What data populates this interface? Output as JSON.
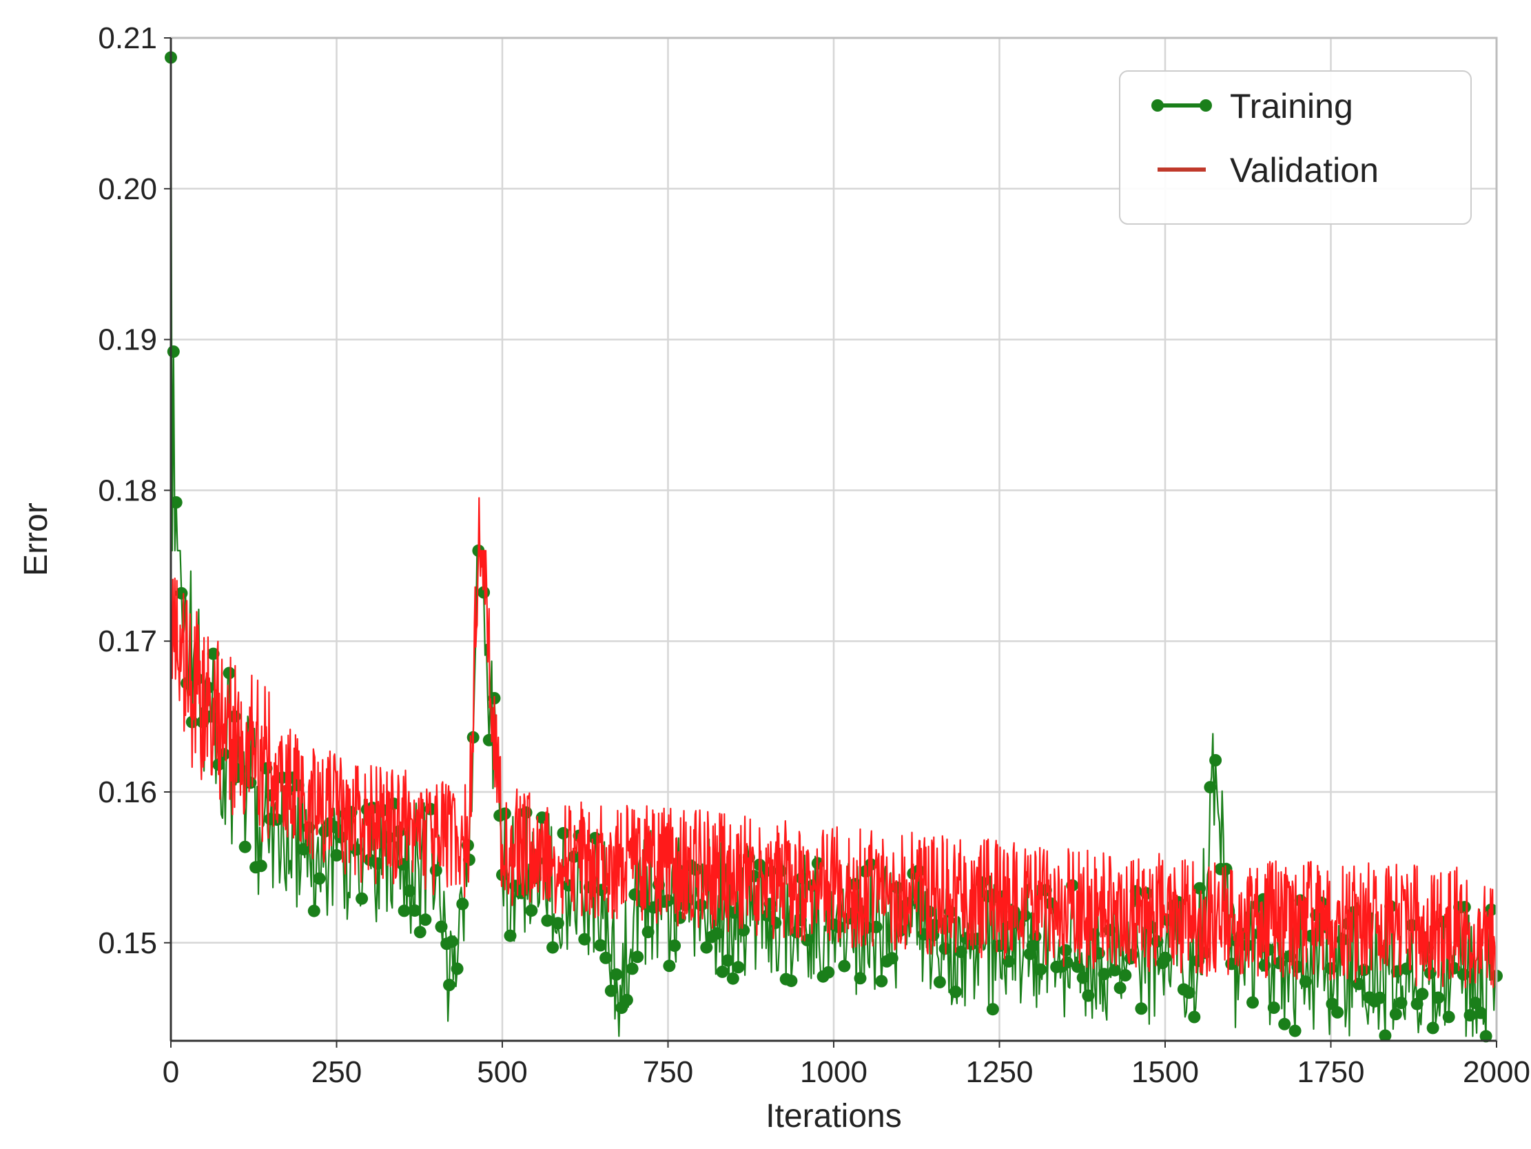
{
  "chart_data": {
    "type": "line",
    "title": "",
    "xlabel": "Iterations",
    "ylabel": "Error",
    "xlim": [
      0,
      2000
    ],
    "ylim": [
      0.1435,
      0.21
    ],
    "xticks": [
      0,
      250,
      500,
      750,
      1000,
      1250,
      1500,
      1750,
      2000
    ],
    "xtick_labels": [
      "0",
      "250",
      "500",
      "750",
      "1000",
      "1250",
      "1500",
      "1750",
      "2000"
    ],
    "yticks": [
      0.15,
      0.16,
      0.17,
      0.18,
      0.19,
      0.2,
      0.21
    ],
    "ytick_labels": [
      "0.15",
      "0.16",
      "0.17",
      "0.18",
      "0.19",
      "0.20",
      "0.21"
    ],
    "grid": true,
    "legend_position": "top-right",
    "series": [
      {
        "name": "Training",
        "color": "#1a7f1a",
        "marker": "circle",
        "x": [
          0,
          4,
          8,
          15,
          25,
          40,
          60,
          80,
          100,
          125,
          150,
          175,
          200,
          250,
          300,
          350,
          400,
          420,
          450,
          465,
          500,
          550,
          600,
          650,
          675,
          700,
          750,
          800,
          850,
          900,
          950,
          1000,
          1050,
          1100,
          1150,
          1200,
          1250,
          1300,
          1350,
          1400,
          1450,
          1500,
          1550,
          1575,
          1600,
          1650,
          1700,
          1750,
          1800,
          1850,
          1900,
          1950,
          2000
        ],
        "y": [
          0.2087,
          0.1892,
          0.1792,
          0.1745,
          0.1705,
          0.1675,
          0.165,
          0.1625,
          0.161,
          0.1595,
          0.1582,
          0.157,
          0.1562,
          0.1558,
          0.1555,
          0.1552,
          0.1548,
          0.1472,
          0.1555,
          0.178,
          0.1545,
          0.1543,
          0.1538,
          0.1535,
          0.1455,
          0.1532,
          0.1528,
          0.1525,
          0.152,
          0.1518,
          0.1515,
          0.1512,
          0.151,
          0.1508,
          0.1505,
          0.1503,
          0.1498,
          0.1498,
          0.1495,
          0.1493,
          0.1492,
          0.149,
          0.1488,
          0.1612,
          0.1486,
          0.1485,
          0.1484,
          0.1483,
          0.1482,
          0.1481,
          0.148,
          0.1479,
          0.1478
        ]
      },
      {
        "name": "Validation",
        "color": "#ff1a1a",
        "x": [
          0,
          4,
          8,
          15,
          25,
          40,
          60,
          80,
          100,
          125,
          150,
          175,
          200,
          250,
          300,
          350,
          400,
          450,
          465,
          500,
          550,
          600,
          650,
          700,
          750,
          800,
          850,
          900,
          950,
          1000,
          1050,
          1100,
          1150,
          1200,
          1250,
          1300,
          1350,
          1400,
          1450,
          1500,
          1550,
          1600,
          1650,
          1700,
          1750,
          1800,
          1850,
          1900,
          1950,
          2000
        ],
        "y": [
          0.172,
          0.1705,
          0.169,
          0.168,
          0.1672,
          0.1665,
          0.1655,
          0.1645,
          0.1635,
          0.1625,
          0.1615,
          0.1605,
          0.1598,
          0.1585,
          0.1578,
          0.1575,
          0.157,
          0.1568,
          0.1795,
          0.1565,
          0.1562,
          0.1558,
          0.1555,
          0.1552,
          0.155,
          0.1548,
          0.1545,
          0.1542,
          0.154,
          0.1538,
          0.1536,
          0.1534,
          0.1532,
          0.153,
          0.1528,
          0.1526,
          0.1524,
          0.1522,
          0.152,
          0.1519,
          0.1518,
          0.1517,
          0.1516,
          0.1515,
          0.1514,
          0.1513,
          0.1512,
          0.1511,
          0.151,
          0.1509
        ]
      }
    ]
  }
}
